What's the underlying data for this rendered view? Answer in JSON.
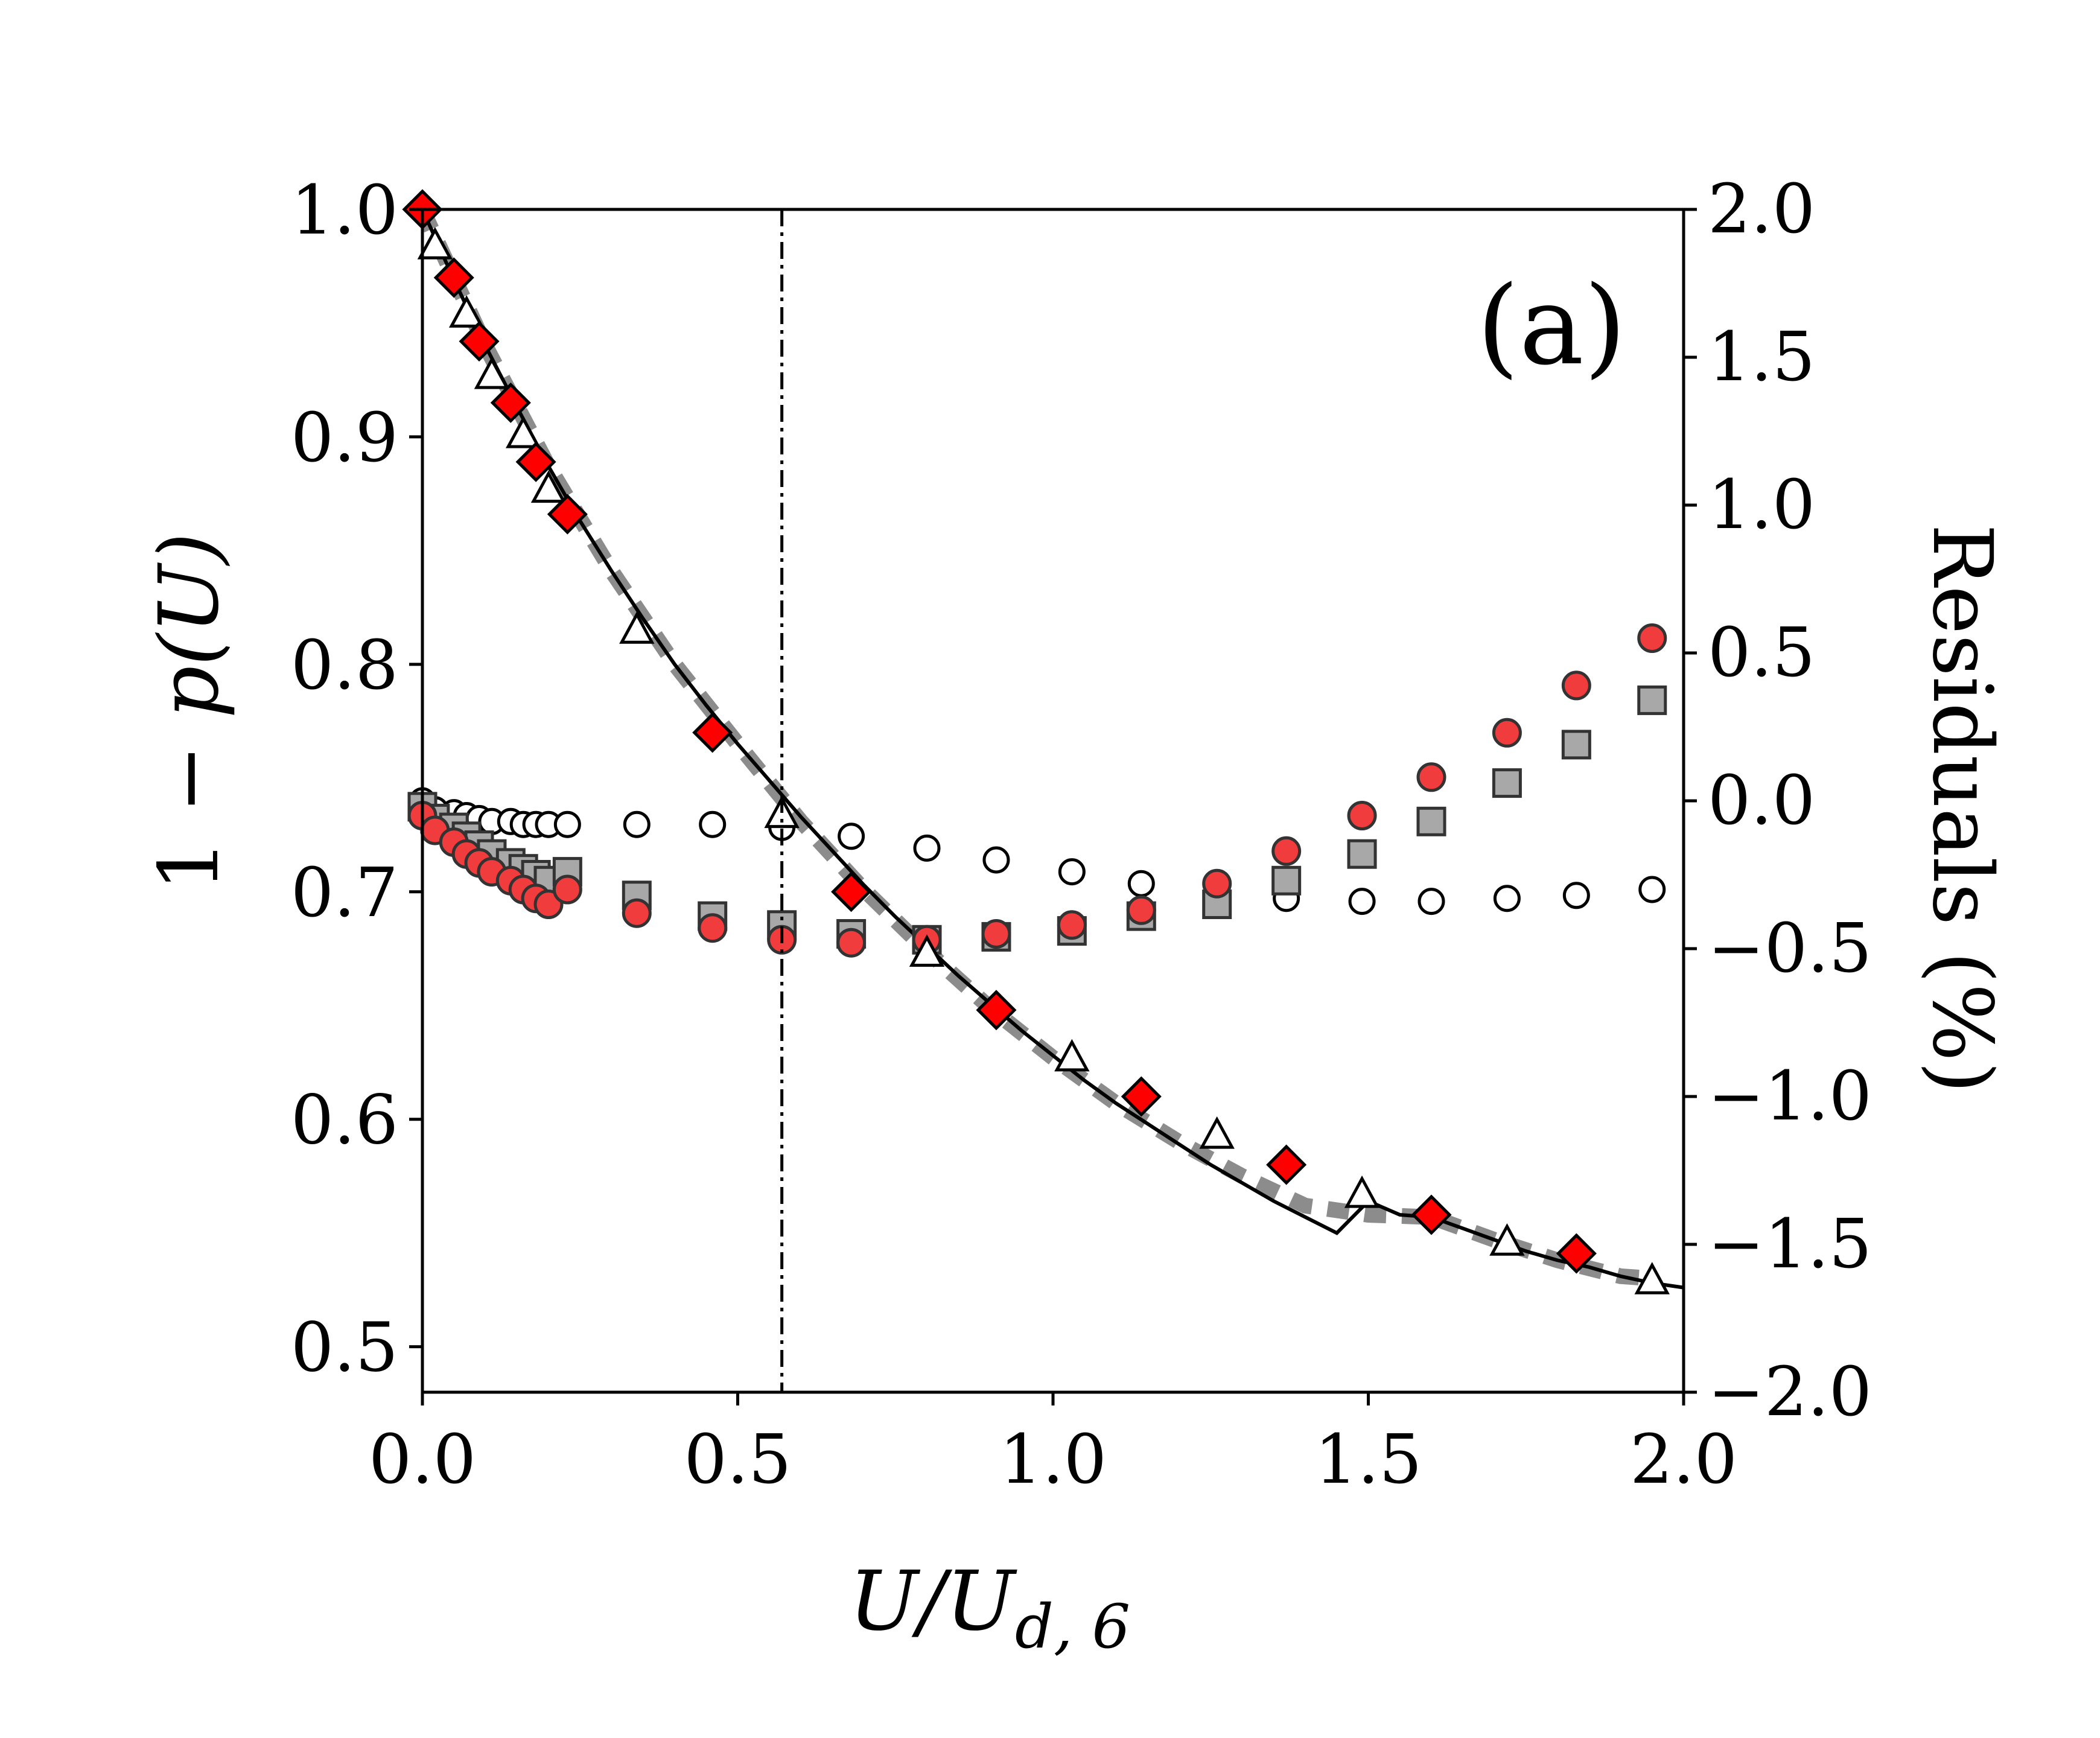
{
  "chart_data": {
    "type": "scatter",
    "panel_label": "(a)",
    "title": "",
    "xlabel": {
      "main": "U/U",
      "subscript": "d, 6"
    },
    "ylabel_left": {
      "prefix": "1 − ",
      "expr": "p(U)"
    },
    "ylabel_right": "Residuals (%)",
    "xlim": [
      0.0,
      2.0
    ],
    "ylim_left": [
      0.48,
      1.0
    ],
    "ylim_right": [
      -2.0,
      2.0
    ],
    "x_ticks": [
      "0.0",
      "0.5",
      "1.0",
      "1.5",
      "2.0"
    ],
    "y_left_ticks": [
      "0.5",
      "0.6",
      "0.7",
      "0.8",
      "0.9",
      "1.0"
    ],
    "y_right_ticks": [
      "−2.0",
      "−1.5",
      "−1.0",
      "−0.5",
      "0.0",
      "0.5",
      "1.0",
      "1.5",
      "2.0"
    ],
    "grid": false,
    "vertical_line_x": 0.57,
    "colors": {
      "fit_line": "#000000",
      "dashed_fit": "#8c8c8c",
      "diamond": "#ff0000",
      "red_circle": "#f03c3c",
      "gray_square": "#a8a8a8",
      "open_marker": "#ffffff"
    },
    "series": [
      {
        "name": "fit (solid line)",
        "axis": "left",
        "style": "solid-line",
        "x": [
          0,
          0.05,
          0.1,
          0.15,
          0.2,
          0.25,
          0.3,
          0.35,
          0.4,
          0.45,
          0.5,
          0.55,
          0.6,
          0.65,
          0.7,
          0.75,
          0.8,
          0.85,
          0.9,
          0.95,
          1.0,
          1.05,
          1.1,
          1.15,
          1.2,
          1.25,
          1.3,
          1.35,
          1.4,
          1.45,
          1.5,
          1.55,
          1.6,
          1.65,
          1.7,
          1.75,
          1.8,
          1.85,
          1.9,
          1.95,
          2.0
        ],
        "y": [
          1.0,
          0.969,
          0.94,
          0.913,
          0.887,
          0.863,
          0.841,
          0.82,
          0.8,
          0.782,
          0.765,
          0.749,
          0.733,
          0.718,
          0.703,
          0.689,
          0.676,
          0.663,
          0.651,
          0.639,
          0.628,
          0.617,
          0.607,
          0.598,
          0.589,
          0.58,
          0.572,
          0.564,
          0.557,
          0.55,
          0.564,
          0.558,
          0.557,
          0.552,
          0.547,
          0.542,
          0.538,
          0.535,
          0.531,
          0.528,
          0.526
        ]
      },
      {
        "name": "fit (gray dashed)",
        "axis": "left",
        "style": "dashed-line",
        "x": [
          0,
          0.1,
          0.2,
          0.3,
          0.4,
          0.5,
          0.6,
          0.7,
          0.8,
          0.9,
          1.0,
          1.1,
          1.2,
          1.3,
          1.4,
          1.5,
          1.6,
          1.7,
          1.8,
          1.9,
          1.95
        ],
        "y": [
          1.0,
          0.94,
          0.887,
          0.841,
          0.8,
          0.765,
          0.731,
          0.701,
          0.674,
          0.649,
          0.627,
          0.607,
          0.59,
          0.575,
          0.562,
          0.558,
          0.557,
          0.547,
          0.538,
          0.531,
          0.53
        ]
      },
      {
        "name": "triangles",
        "axis": "left",
        "marker": "open-triangle",
        "x": [
          0.02,
          0.07,
          0.11,
          0.16,
          0.2,
          0.34,
          0.57,
          0.8,
          1.03,
          1.26,
          1.49,
          1.72,
          1.95
        ],
        "y": [
          0.984,
          0.954,
          0.927,
          0.901,
          0.877,
          0.815,
          0.734,
          0.673,
          0.627,
          0.593,
          0.567,
          0.546,
          0.529
        ]
      },
      {
        "name": "diamonds",
        "axis": "left",
        "marker": "red-diamond",
        "x": [
          0.0,
          0.05,
          0.09,
          0.14,
          0.18,
          0.23,
          0.46,
          0.68,
          0.91,
          1.14,
          1.37,
          1.6,
          1.83
        ],
        "y": [
          1.0,
          0.97,
          0.942,
          0.915,
          0.889,
          0.866,
          0.77,
          0.7,
          0.648,
          0.61,
          0.58,
          0.558,
          0.541
        ]
      },
      {
        "name": "residuals red circles",
        "axis": "right",
        "marker": "red-circle",
        "x": [
          0.0,
          0.02,
          0.05,
          0.07,
          0.09,
          0.11,
          0.14,
          0.16,
          0.18,
          0.2,
          0.23,
          0.34,
          0.46,
          0.57,
          0.68,
          0.8,
          0.91,
          1.03,
          1.14,
          1.26,
          1.37,
          1.49,
          1.6,
          1.72,
          1.83,
          1.95
        ],
        "y": [
          -0.05,
          -0.1,
          -0.14,
          -0.18,
          -0.21,
          -0.24,
          -0.27,
          -0.3,
          -0.33,
          -0.35,
          -0.3,
          -0.38,
          -0.43,
          -0.47,
          -0.48,
          -0.47,
          -0.45,
          -0.42,
          -0.37,
          -0.28,
          -0.17,
          -0.05,
          0.08,
          0.23,
          0.39,
          0.55
        ]
      },
      {
        "name": "residuals gray squares",
        "axis": "right",
        "marker": "gray-square",
        "x": [
          0.0,
          0.02,
          0.05,
          0.07,
          0.09,
          0.11,
          0.14,
          0.16,
          0.18,
          0.2,
          0.23,
          0.34,
          0.46,
          0.57,
          0.68,
          0.8,
          0.91,
          1.03,
          1.14,
          1.26,
          1.37,
          1.49,
          1.6,
          1.72,
          1.83,
          1.95
        ],
        "y": [
          -0.02,
          -0.06,
          -0.09,
          -0.12,
          -0.15,
          -0.18,
          -0.21,
          -0.23,
          -0.25,
          -0.27,
          -0.24,
          -0.32,
          -0.39,
          -0.42,
          -0.45,
          -0.47,
          -0.46,
          -0.44,
          -0.39,
          -0.35,
          -0.27,
          -0.18,
          -0.07,
          0.06,
          0.19,
          0.34
        ]
      },
      {
        "name": "residuals open circles",
        "axis": "right",
        "marker": "open-circle",
        "x": [
          0.0,
          0.02,
          0.05,
          0.07,
          0.09,
          0.11,
          0.14,
          0.16,
          0.18,
          0.2,
          0.23,
          0.34,
          0.46,
          0.57,
          0.68,
          0.8,
          0.91,
          1.03,
          1.14,
          1.26,
          1.37,
          1.49,
          1.6,
          1.72,
          1.83,
          1.95
        ],
        "y": [
          0.0,
          -0.03,
          -0.04,
          -0.05,
          -0.06,
          -0.07,
          -0.07,
          -0.08,
          -0.08,
          -0.08,
          -0.08,
          -0.08,
          -0.08,
          -0.09,
          -0.12,
          -0.16,
          -0.2,
          -0.24,
          -0.28,
          -0.31,
          -0.33,
          -0.34,
          -0.34,
          -0.33,
          -0.32,
          -0.3
        ]
      }
    ]
  }
}
